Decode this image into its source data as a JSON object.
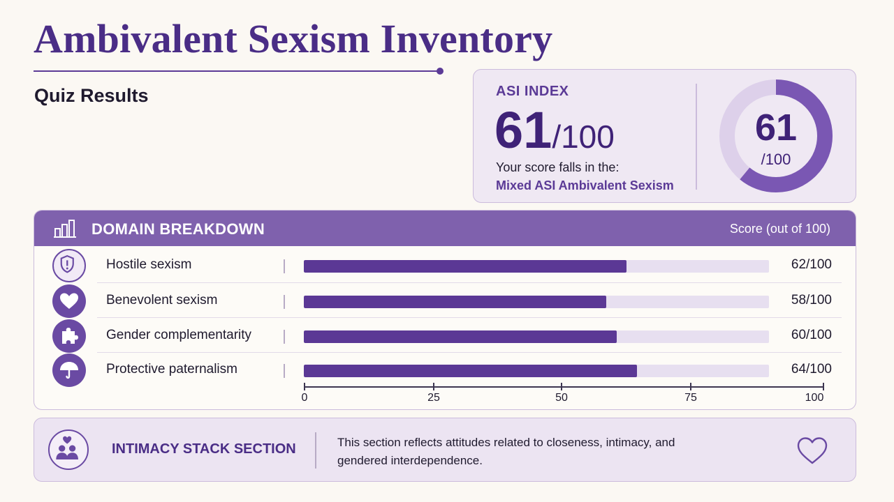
{
  "header": {
    "title": "Ambivalent Sexism Inventory",
    "subtitle": "Quiz Results"
  },
  "asi": {
    "label": "ASI INDEX",
    "score": "61",
    "out_of": "/100",
    "falls_text": "Your score falls in the:",
    "category": "Mixed ASI Ambivalent Sexism",
    "donut_value": 61,
    "donut_num": "61",
    "donut_den": "/100"
  },
  "domain": {
    "title": "DOMAIN BREAKDOWN",
    "score_label": "Score (out of 100)",
    "rows": [
      {
        "label": "Hostile sexism",
        "score": 62,
        "value_text": "62/100",
        "icon": "shield-alert-icon"
      },
      {
        "label": "Benevolent sexism",
        "score": 58,
        "value_text": "58/100",
        "icon": "heart-icon"
      },
      {
        "label": "Gender complementarity",
        "score": 60,
        "value_text": "60/100",
        "icon": "puzzle-icon"
      },
      {
        "label": "Protective paternalism",
        "score": 64,
        "value_text": "64/100",
        "icon": "umbrella-icon"
      }
    ],
    "axis_ticks": [
      "0",
      "25",
      "50",
      "75",
      "100"
    ]
  },
  "intimacy": {
    "title": "INTIMACY STACK SECTION",
    "description": "This section reflects attitudes related to closeness, intimacy, and gendered interdependence."
  },
  "colors": {
    "accent": "#5b3895",
    "header_bar": "#7f61ad",
    "track": "#e7dff0",
    "background": "#fbf8f3"
  }
}
